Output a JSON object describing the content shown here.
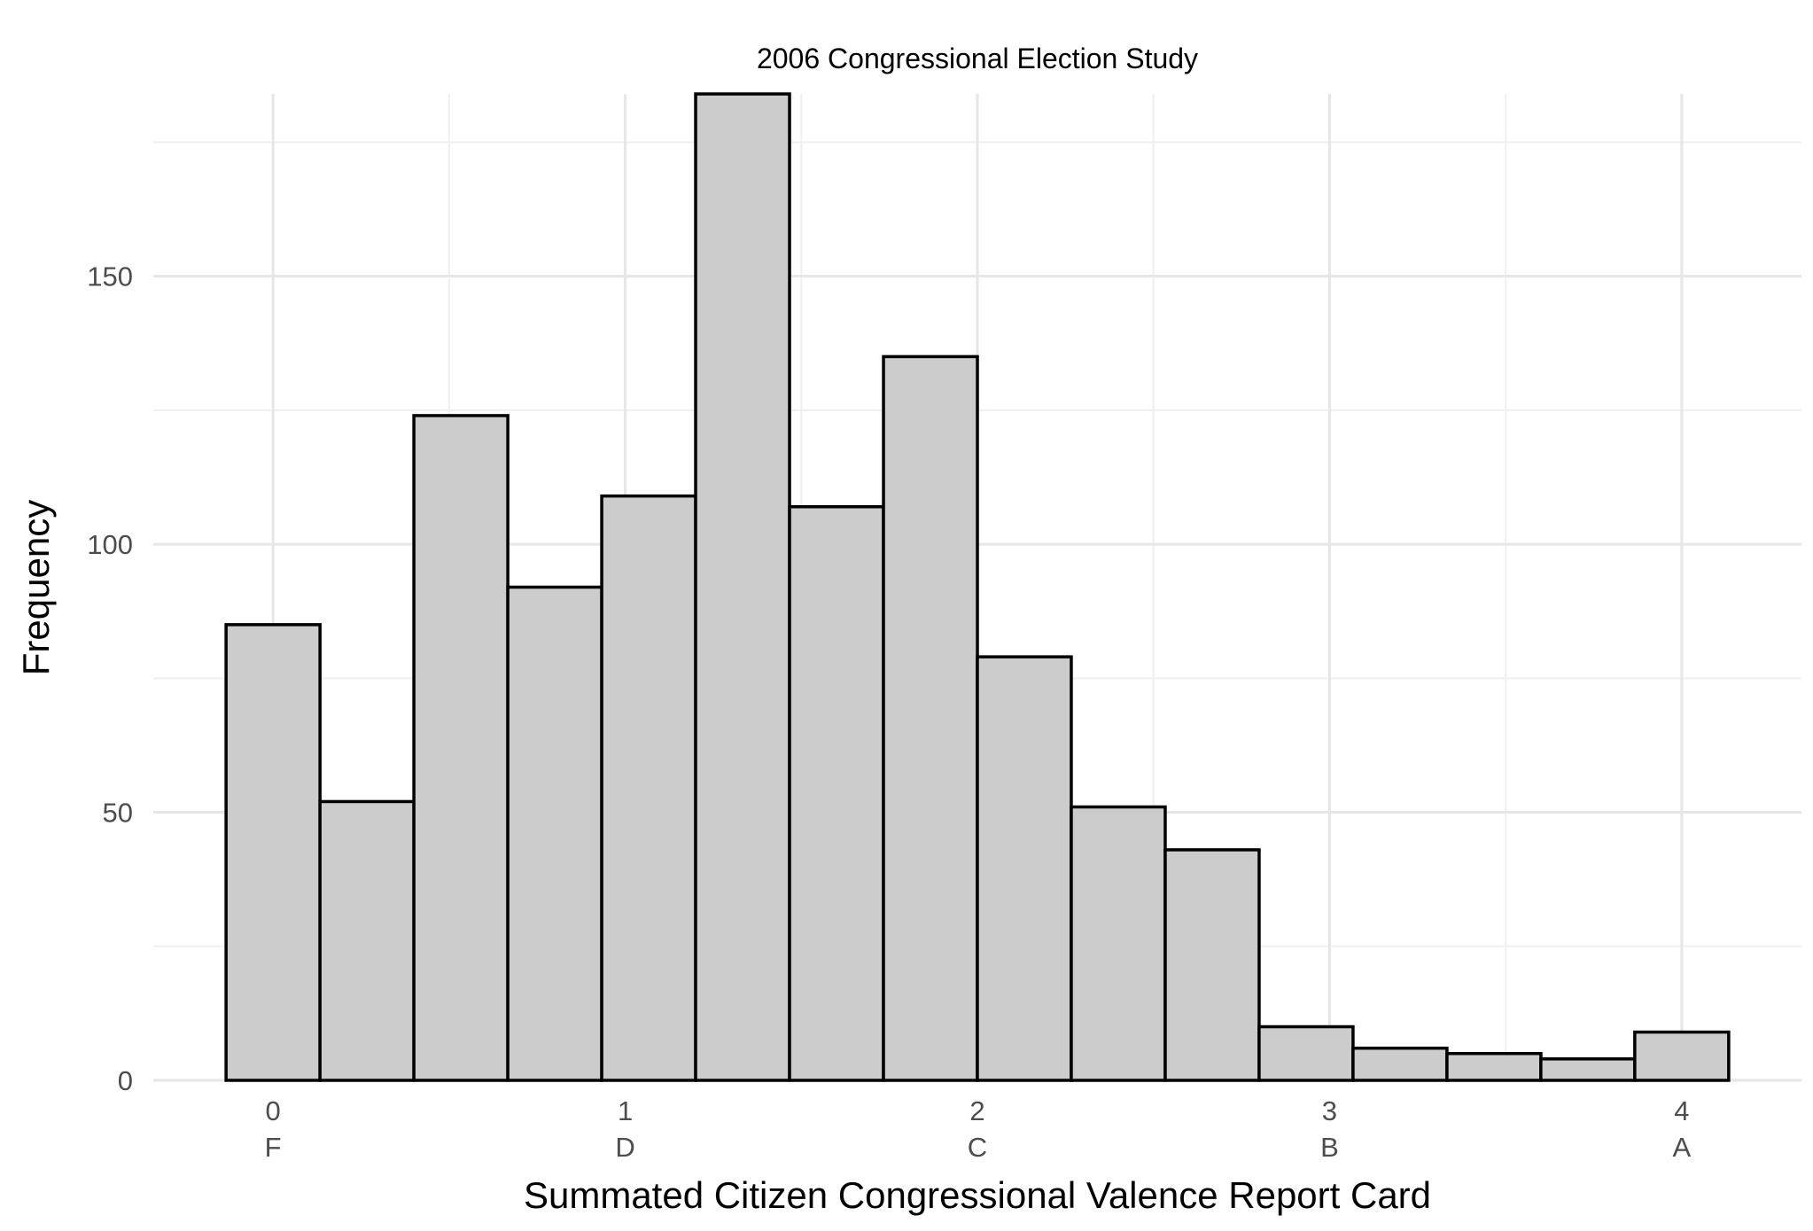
{
  "chart_data": {
    "type": "bar",
    "title": "2006 Congressional Election Study",
    "xlabel": "Summated Citizen Congressional Valence Report Card",
    "ylabel": "Frequency",
    "bin_width": 0.2667,
    "bins": [
      {
        "x_center": 0.0,
        "count": 85
      },
      {
        "x_center": 0.2667,
        "count": 52
      },
      {
        "x_center": 0.5333,
        "count": 124
      },
      {
        "x_center": 0.8,
        "count": 92
      },
      {
        "x_center": 1.0667,
        "count": 109
      },
      {
        "x_center": 1.3333,
        "count": 184
      },
      {
        "x_center": 1.6,
        "count": 107
      },
      {
        "x_center": 1.8667,
        "count": 135
      },
      {
        "x_center": 2.1333,
        "count": 79
      },
      {
        "x_center": 2.4,
        "count": 51
      },
      {
        "x_center": 2.6667,
        "count": 43
      },
      {
        "x_center": 2.9333,
        "count": 10
      },
      {
        "x_center": 3.2,
        "count": 6
      },
      {
        "x_center": 3.4667,
        "count": 5
      },
      {
        "x_center": 3.7333,
        "count": 4
      },
      {
        "x_center": 4.0,
        "count": 9
      }
    ],
    "x_ticks": [
      {
        "value": 0,
        "label": "0",
        "grade": "F"
      },
      {
        "value": 1,
        "label": "1",
        "grade": "D"
      },
      {
        "value": 2,
        "label": "2",
        "grade": "C"
      },
      {
        "value": 3,
        "label": "3",
        "grade": "B"
      },
      {
        "value": 4,
        "label": "4",
        "grade": "A"
      }
    ],
    "y_ticks": [
      {
        "value": 0,
        "label": "0"
      },
      {
        "value": 50,
        "label": "50"
      },
      {
        "value": 100,
        "label": "100"
      },
      {
        "value": 150,
        "label": "150"
      }
    ],
    "x_minor": [
      0.5,
      1.5,
      2.5,
      3.5
    ],
    "y_minor": [
      25,
      75,
      125,
      175
    ],
    "xlim": [
      -0.34,
      4.34
    ],
    "ylim": [
      0,
      184
    ],
    "grid": true,
    "legend": "none",
    "colors": {
      "fill": "#cccccc",
      "outline": "#000000",
      "grid": "#e6e6e6"
    }
  }
}
